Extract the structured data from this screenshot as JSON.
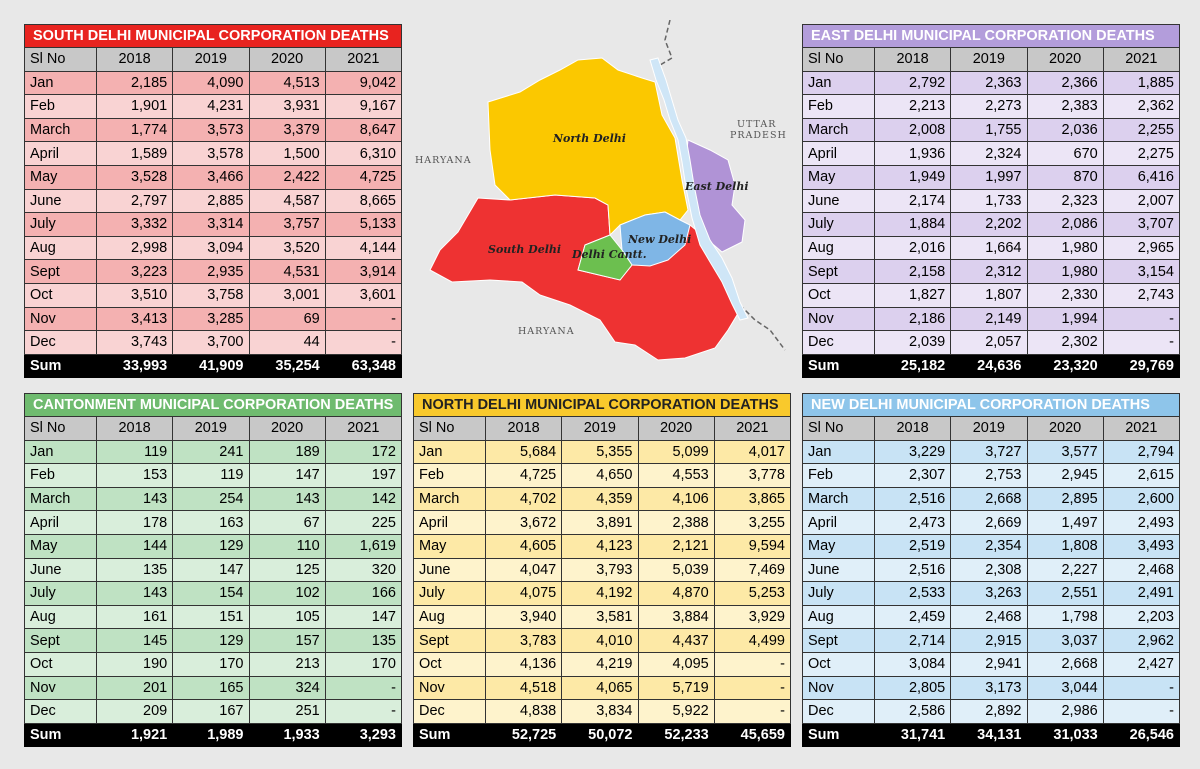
{
  "columns": [
    "Sl No",
    "2018",
    "2019",
    "2020",
    "2021"
  ],
  "tables": [
    {
      "id": "south",
      "title": "SOUTH DELHI MUNICIPAL CORPORATION DEATHS",
      "colors": {
        "title_bg": "#e8231f",
        "title_fg": "#ffffff",
        "row_a": "#f4b1b1",
        "row_b": "#f9d3d3"
      },
      "rows": [
        [
          "Jan",
          "2,185",
          "4,090",
          "4,513",
          "9,042"
        ],
        [
          "Feb",
          "1,901",
          "4,231",
          "3,931",
          "9,167"
        ],
        [
          "March",
          "1,774",
          "3,573",
          "3,379",
          "8,647"
        ],
        [
          "April",
          "1,589",
          "3,578",
          "1,500",
          "6,310"
        ],
        [
          "May",
          "3,528",
          "3,466",
          "2,422",
          "4,725"
        ],
        [
          "June",
          "2,797",
          "2,885",
          "4,587",
          "8,665"
        ],
        [
          "July",
          "3,332",
          "3,314",
          "3,757",
          "5,133"
        ],
        [
          "Aug",
          "2,998",
          "3,094",
          "3,520",
          "4,144"
        ],
        [
          "Sept",
          "3,223",
          "2,935",
          "4,531",
          "3,914"
        ],
        [
          "Oct",
          "3,510",
          "3,758",
          "3,001",
          "3,601"
        ],
        [
          "Nov",
          "3,413",
          "3,285",
          "69",
          "-"
        ],
        [
          "Dec",
          "3,743",
          "3,700",
          "44",
          "-"
        ]
      ],
      "sum": [
        "Sum",
        "33,993",
        "41,909",
        "35,254",
        "63,348"
      ]
    },
    {
      "id": "east",
      "title": "EAST DELHI MUNICIPAL CORPORATION DEATHS",
      "colors": {
        "title_bg": "#b39ddb",
        "title_fg": "#ffffff",
        "row_a": "#dcd0ee",
        "row_b": "#ece5f6"
      },
      "rows": [
        [
          "Jan",
          "2,792",
          "2,363",
          "2,366",
          "1,885"
        ],
        [
          "Feb",
          "2,213",
          "2,273",
          "2,383",
          "2,362"
        ],
        [
          "March",
          "2,008",
          "1,755",
          "2,036",
          "2,255"
        ],
        [
          "April",
          "1,936",
          "2,324",
          "670",
          "2,275"
        ],
        [
          "May",
          "1,949",
          "1,997",
          "870",
          "6,416"
        ],
        [
          "June",
          "2,174",
          "1,733",
          "2,323",
          "2,007"
        ],
        [
          "July",
          "1,884",
          "2,202",
          "2,086",
          "3,707"
        ],
        [
          "Aug",
          "2,016",
          "1,664",
          "1,980",
          "2,965"
        ],
        [
          "Sept",
          "2,158",
          "2,312",
          "1,980",
          "3,154"
        ],
        [
          "Oct",
          "1,827",
          "1,807",
          "2,330",
          "2,743"
        ],
        [
          "Nov",
          "2,186",
          "2,149",
          "1,994",
          "-"
        ],
        [
          "Dec",
          "2,039",
          "2,057",
          "2,302",
          "-"
        ]
      ],
      "sum": [
        "Sum",
        "25,182",
        "24,636",
        "23,320",
        "29,769"
      ]
    },
    {
      "id": "cant",
      "title": "CANTONMENT MUNICIPAL CORPORATION DEATHS",
      "colors": {
        "title_bg": "#6fbb6f",
        "title_fg": "#ffffff",
        "row_a": "#bfe2c3",
        "row_b": "#d9eedb"
      },
      "rows": [
        [
          "Jan",
          "119",
          "241",
          "189",
          "172"
        ],
        [
          "Feb",
          "153",
          "119",
          "147",
          "197"
        ],
        [
          "March",
          "143",
          "254",
          "143",
          "142"
        ],
        [
          "April",
          "178",
          "163",
          "67",
          "225"
        ],
        [
          "May",
          "144",
          "129",
          "110",
          "1,619"
        ],
        [
          "June",
          "135",
          "147",
          "125",
          "320"
        ],
        [
          "July",
          "143",
          "154",
          "102",
          "166"
        ],
        [
          "Aug",
          "161",
          "151",
          "105",
          "147"
        ],
        [
          "Sept",
          "145",
          "129",
          "157",
          "135"
        ],
        [
          "Oct",
          "190",
          "170",
          "213",
          "170"
        ],
        [
          "Nov",
          "201",
          "165",
          "324",
          "-"
        ],
        [
          "Dec",
          "209",
          "167",
          "251",
          "-"
        ]
      ],
      "sum": [
        "Sum",
        "1,921",
        "1,989",
        "1,933",
        "3,293"
      ]
    },
    {
      "id": "north",
      "title": "NORTH DELHI MUNICIPAL CORPORATION DEATHS",
      "colors": {
        "title_bg": "#f9c92c",
        "title_fg": "#222222",
        "row_a": "#fde9a6",
        "row_b": "#fef3cc"
      },
      "rows": [
        [
          "Jan",
          "5,684",
          "5,355",
          "5,099",
          "4,017"
        ],
        [
          "Feb",
          "4,725",
          "4,650",
          "4,553",
          "3,778"
        ],
        [
          "March",
          "4,702",
          "4,359",
          "4,106",
          "3,865"
        ],
        [
          "April",
          "3,672",
          "3,891",
          "2,388",
          "3,255"
        ],
        [
          "May",
          "4,605",
          "4,123",
          "2,121",
          "9,594"
        ],
        [
          "June",
          "4,047",
          "3,793",
          "5,039",
          "7,469"
        ],
        [
          "July",
          "4,075",
          "4,192",
          "4,870",
          "5,253"
        ],
        [
          "Aug",
          "3,940",
          "3,581",
          "3,884",
          "3,929"
        ],
        [
          "Sept",
          "3,783",
          "4,010",
          "4,437",
          "4,499"
        ],
        [
          "Oct",
          "4,136",
          "4,219",
          "4,095",
          "-"
        ],
        [
          "Nov",
          "4,518",
          "4,065",
          "5,719",
          "-"
        ],
        [
          "Dec",
          "4,838",
          "3,834",
          "5,922",
          "-"
        ]
      ],
      "sum": [
        "Sum",
        "52,725",
        "50,072",
        "52,233",
        "45,659"
      ]
    },
    {
      "id": "newd",
      "title": "NEW DELHI MUNICIPAL CORPORATION DEATHS",
      "colors": {
        "title_bg": "#8ec5ea",
        "title_fg": "#ffffff",
        "row_a": "#c8e3f5",
        "row_b": "#e0eff9"
      },
      "rows": [
        [
          "Jan",
          "3,229",
          "3,727",
          "3,577",
          "2,794"
        ],
        [
          "Feb",
          "2,307",
          "2,753",
          "2,945",
          "2,615"
        ],
        [
          "March",
          "2,516",
          "2,668",
          "2,895",
          "2,600"
        ],
        [
          "April",
          "2,473",
          "2,669",
          "1,497",
          "2,493"
        ],
        [
          "May",
          "2,519",
          "2,354",
          "1,808",
          "3,493"
        ],
        [
          "June",
          "2,516",
          "2,308",
          "2,227",
          "2,468"
        ],
        [
          "July",
          "2,533",
          "3,263",
          "2,551",
          "2,491"
        ],
        [
          "Aug",
          "2,459",
          "2,468",
          "1,798",
          "2,203"
        ],
        [
          "Sept",
          "2,714",
          "2,915",
          "3,037",
          "2,962"
        ],
        [
          "Oct",
          "3,084",
          "2,941",
          "2,668",
          "2,427"
        ],
        [
          "Nov",
          "2,805",
          "3,173",
          "3,044",
          "-"
        ],
        [
          "Dec",
          "2,586",
          "2,892",
          "2,986",
          "-"
        ]
      ],
      "sum": [
        "Sum",
        "31,741",
        "34,131",
        "31,033",
        "26,546"
      ]
    }
  ],
  "map": {
    "regions": [
      {
        "name": "North Delhi",
        "color": "#fbc800"
      },
      {
        "name": "South Delhi",
        "color": "#ee3232"
      },
      {
        "name": "East Delhi",
        "color": "#b093d6"
      },
      {
        "name": "New Delhi",
        "color": "#7fb6e6"
      },
      {
        "name": "Delhi Cantt.",
        "color": "#6cbf4f"
      }
    ],
    "labels": {
      "haryana_west": "HARYANA",
      "haryana_south": "HARYANA",
      "uttar_line1": "UTTAR",
      "uttar_line2": "PRADESH"
    },
    "river_color": "#cfe6f7"
  },
  "chart_data": [
    {
      "type": "table",
      "title": "SOUTH DELHI MUNICIPAL CORPORATION DEATHS",
      "columns": [
        "Sl No",
        "2018",
        "2019",
        "2020",
        "2021"
      ],
      "categories": [
        "Jan",
        "Feb",
        "March",
        "April",
        "May",
        "June",
        "July",
        "Aug",
        "Sept",
        "Oct",
        "Nov",
        "Dec"
      ],
      "series": [
        {
          "name": "2018",
          "values": [
            2185,
            1901,
            1774,
            1589,
            3528,
            2797,
            3332,
            2998,
            3223,
            3510,
            3413,
            3743
          ]
        },
        {
          "name": "2019",
          "values": [
            4090,
            4231,
            3573,
            3578,
            3466,
            2885,
            3314,
            3094,
            2935,
            3758,
            3285,
            3700
          ]
        },
        {
          "name": "2020",
          "values": [
            4513,
            3931,
            3379,
            1500,
            2422,
            4587,
            3757,
            3520,
            4531,
            3001,
            69,
            44
          ]
        },
        {
          "name": "2021",
          "values": [
            9042,
            9167,
            8647,
            6310,
            4725,
            8665,
            5133,
            4144,
            3914,
            3601,
            null,
            null
          ]
        }
      ],
      "sum": [
        33993,
        41909,
        35254,
        63348
      ]
    },
    {
      "type": "table",
      "title": "EAST DELHI MUNICIPAL CORPORATION DEATHS",
      "columns": [
        "Sl No",
        "2018",
        "2019",
        "2020",
        "2021"
      ],
      "categories": [
        "Jan",
        "Feb",
        "March",
        "April",
        "May",
        "June",
        "July",
        "Aug",
        "Sept",
        "Oct",
        "Nov",
        "Dec"
      ],
      "series": [
        {
          "name": "2018",
          "values": [
            2792,
            2213,
            2008,
            1936,
            1949,
            2174,
            1884,
            2016,
            2158,
            1827,
            2186,
            2039
          ]
        },
        {
          "name": "2019",
          "values": [
            2363,
            2273,
            1755,
            2324,
            1997,
            1733,
            2202,
            1664,
            2312,
            1807,
            2149,
            2057
          ]
        },
        {
          "name": "2020",
          "values": [
            2366,
            2383,
            2036,
            670,
            870,
            2323,
            2086,
            1980,
            1980,
            2330,
            1994,
            2302
          ]
        },
        {
          "name": "2021",
          "values": [
            1885,
            2362,
            2255,
            2275,
            6416,
            2007,
            3707,
            2965,
            3154,
            2743,
            null,
            null
          ]
        }
      ],
      "sum": [
        25182,
        24636,
        23320,
        29769
      ]
    },
    {
      "type": "table",
      "title": "CANTONMENT MUNICIPAL CORPORATION DEATHS",
      "columns": [
        "Sl No",
        "2018",
        "2019",
        "2020",
        "2021"
      ],
      "categories": [
        "Jan",
        "Feb",
        "March",
        "April",
        "May",
        "June",
        "July",
        "Aug",
        "Sept",
        "Oct",
        "Nov",
        "Dec"
      ],
      "series": [
        {
          "name": "2018",
          "values": [
            119,
            153,
            143,
            178,
            144,
            135,
            143,
            161,
            145,
            190,
            201,
            209
          ]
        },
        {
          "name": "2019",
          "values": [
            241,
            119,
            254,
            163,
            129,
            147,
            154,
            151,
            129,
            170,
            165,
            167
          ]
        },
        {
          "name": "2020",
          "values": [
            189,
            147,
            143,
            67,
            110,
            125,
            102,
            105,
            157,
            213,
            324,
            251
          ]
        },
        {
          "name": "2021",
          "values": [
            172,
            197,
            142,
            225,
            1619,
            320,
            166,
            147,
            135,
            170,
            null,
            null
          ]
        }
      ],
      "sum": [
        1921,
        1989,
        1933,
        3293
      ]
    },
    {
      "type": "table",
      "title": "NORTH DELHI MUNICIPAL CORPORATION DEATHS",
      "columns": [
        "Sl No",
        "2018",
        "2019",
        "2020",
        "2021"
      ],
      "categories": [
        "Jan",
        "Feb",
        "March",
        "April",
        "May",
        "June",
        "July",
        "Aug",
        "Sept",
        "Oct",
        "Nov",
        "Dec"
      ],
      "series": [
        {
          "name": "2018",
          "values": [
            5684,
            4725,
            4702,
            3672,
            4605,
            4047,
            4075,
            3940,
            3783,
            4136,
            4518,
            4838
          ]
        },
        {
          "name": "2019",
          "values": [
            5355,
            4650,
            4359,
            3891,
            4123,
            3793,
            4192,
            3581,
            4010,
            4219,
            4065,
            3834
          ]
        },
        {
          "name": "2020",
          "values": [
            5099,
            4553,
            4106,
            2388,
            2121,
            5039,
            4870,
            3884,
            4437,
            4095,
            5719,
            5922
          ]
        },
        {
          "name": "2021",
          "values": [
            4017,
            3778,
            3865,
            3255,
            9594,
            7469,
            5253,
            3929,
            4499,
            null,
            null,
            null
          ]
        }
      ],
      "sum": [
        52725,
        50072,
        52233,
        45659
      ]
    },
    {
      "type": "table",
      "title": "NEW DELHI MUNICIPAL CORPORATION DEATHS",
      "columns": [
        "Sl No",
        "2018",
        "2019",
        "2020",
        "2021"
      ],
      "categories": [
        "Jan",
        "Feb",
        "March",
        "April",
        "May",
        "June",
        "July",
        "Aug",
        "Sept",
        "Oct",
        "Nov",
        "Dec"
      ],
      "series": [
        {
          "name": "2018",
          "values": [
            3229,
            2307,
            2516,
            2473,
            2519,
            2516,
            2533,
            2459,
            2714,
            3084,
            2805,
            2586
          ]
        },
        {
          "name": "2019",
          "values": [
            3727,
            2753,
            2668,
            2669,
            2354,
            2308,
            3263,
            2468,
            2915,
            2941,
            3173,
            2892
          ]
        },
        {
          "name": "2020",
          "values": [
            3577,
            2945,
            2895,
            1497,
            1808,
            2227,
            2551,
            1798,
            3037,
            2668,
            3044,
            2986
          ]
        },
        {
          "name": "2021",
          "values": [
            2794,
            2615,
            2600,
            2493,
            3493,
            2468,
            2491,
            2203,
            2962,
            2427,
            null,
            null
          ]
        }
      ],
      "sum": [
        31741,
        34131,
        31033,
        26546
      ]
    }
  ]
}
